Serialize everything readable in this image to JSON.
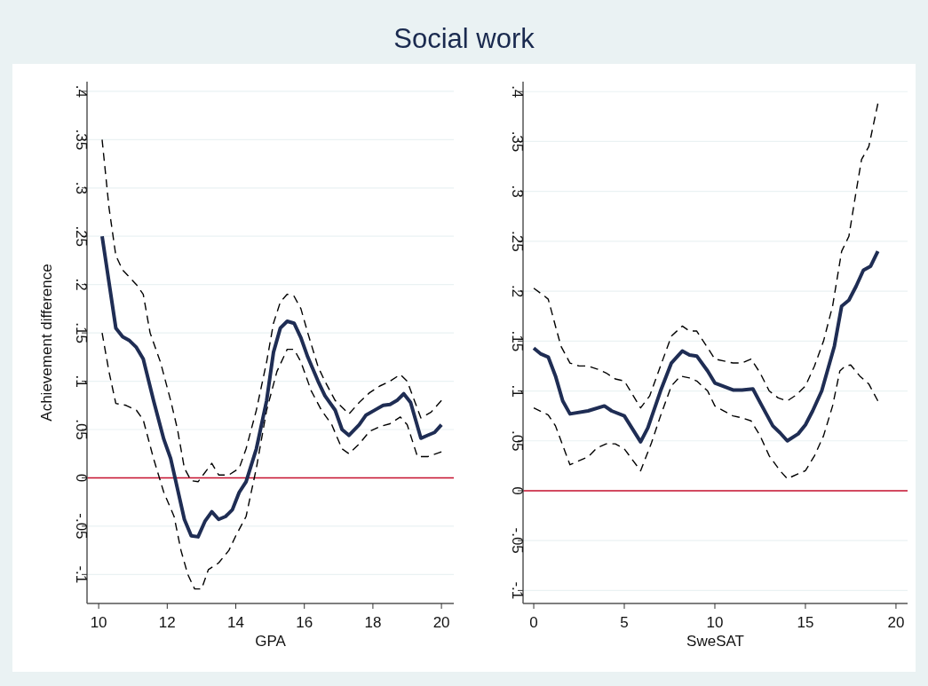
{
  "chart_data": [
    {
      "type": "line",
      "title": "Social work",
      "xlabel": "GPA",
      "ylabel": "Achievement difference",
      "xlim": [
        9.66,
        20.36
      ],
      "xticks": [
        10,
        12,
        14,
        16,
        18,
        20
      ],
      "ylim": [
        -0.13,
        0.41
      ],
      "yticks": [
        {
          "value": -0.1,
          "label": "-.1"
        },
        {
          "value": -0.05,
          "label": "-.05"
        },
        0,
        {
          "value": 0.05,
          "label": ".05"
        },
        {
          "value": 0.1,
          "label": ".1"
        },
        {
          "value": 0.15,
          "label": ".15"
        },
        {
          "value": 0.2,
          "label": ".2"
        },
        {
          "value": 0.25,
          "label": ".25"
        },
        {
          "value": 0.3,
          "label": ".3"
        },
        {
          "value": 0.35,
          "label": ".35"
        },
        {
          "value": 0.4,
          "label": ".4"
        }
      ],
      "grid": "y",
      "ref_lines": [
        {
          "axis": "y",
          "value": 0,
          "color": "#c8102e"
        }
      ],
      "series": [
        {
          "color": "#000000",
          "line_style": "dashed",
          "x": [
            10.1,
            10.3,
            10.5,
            10.7,
            11.1,
            11.3,
            11.5,
            11.8,
            12.1,
            12.3,
            12.5,
            12.7,
            12.9,
            13.3,
            13.5,
            13.8,
            14.1,
            14.3,
            14.6,
            14.9,
            15.1,
            15.3,
            15.5,
            15.7,
            15.9,
            16.1,
            16.4,
            16.6,
            16.9,
            17.3,
            17.6,
            17.9,
            18.2,
            18.5,
            18.8,
            19.0,
            19.4,
            19.7,
            20
          ],
          "values": [
            0.35,
            0.28,
            0.23,
            0.215,
            0.2,
            0.19,
            0.15,
            0.12,
            0.08,
            0.05,
            0.01,
            -0.003,
            -0.004,
            0.015,
            0.003,
            0.003,
            0.01,
            0.03,
            0.07,
            0.12,
            0.16,
            0.182,
            0.19,
            0.188,
            0.175,
            0.15,
            0.115,
            0.1,
            0.08,
            0.066,
            0.078,
            0.088,
            0.095,
            0.1,
            0.107,
            0.1,
            0.062,
            0.068,
            0.08
          ]
        },
        {
          "color": "#000000",
          "line_style": "dashed",
          "x": [
            10.1,
            10.3,
            10.5,
            10.8,
            11.1,
            11.3,
            11.6,
            11.9,
            12.2,
            12.4,
            12.6,
            12.8,
            13.0,
            13.2,
            13.5,
            13.8,
            14.0,
            14.3,
            14.6,
            14.9,
            15.2,
            15.5,
            15.7,
            15.9,
            16.2,
            16.5,
            16.8,
            17.1,
            17.3,
            17.6,
            17.9,
            18.2,
            18.5,
            18.8,
            19.0,
            19.3,
            19.6,
            20
          ],
          "values": [
            0.15,
            0.11,
            0.077,
            0.075,
            0.07,
            0.06,
            0.02,
            -0.015,
            -0.04,
            -0.075,
            -0.1,
            -0.115,
            -0.115,
            -0.095,
            -0.088,
            -0.075,
            -0.06,
            -0.04,
            0.01,
            0.07,
            0.11,
            0.133,
            0.133,
            0.12,
            0.09,
            0.07,
            0.055,
            0.03,
            0.025,
            0.035,
            0.048,
            0.053,
            0.056,
            0.063,
            0.055,
            0.022,
            0.022,
            0.027
          ]
        },
        {
          "color": "#1f2d54",
          "line_style": "solid",
          "x": [
            10.1,
            10.5,
            10.7,
            10.9,
            11.1,
            11.3,
            11.6,
            11.9,
            12.1,
            12.5,
            12.7,
            12.9,
            13.1,
            13.3,
            13.5,
            13.7,
            13.9,
            14.1,
            14.3,
            14.6,
            14.9,
            15.1,
            15.3,
            15.5,
            15.7,
            15.9,
            16.1,
            16.4,
            16.6,
            16.9,
            17.1,
            17.3,
            17.6,
            17.8,
            18.1,
            18.3,
            18.5,
            18.7,
            18.9,
            19.1,
            19.4,
            19.6,
            19.8,
            20
          ],
          "values": [
            0.25,
            0.155,
            0.146,
            0.142,
            0.135,
            0.123,
            0.08,
            0.04,
            0.02,
            -0.043,
            -0.06,
            -0.061,
            -0.045,
            -0.035,
            -0.043,
            -0.04,
            -0.033,
            -0.015,
            -0.004,
            0.03,
            0.08,
            0.13,
            0.155,
            0.162,
            0.16,
            0.145,
            0.125,
            0.1,
            0.085,
            0.07,
            0.05,
            0.044,
            0.055,
            0.065,
            0.071,
            0.075,
            0.076,
            0.08,
            0.087,
            0.078,
            0.041,
            0.044,
            0.047,
            0.055
          ]
        }
      ]
    },
    {
      "type": "line",
      "xlabel": "SweSAT",
      "xlim": [
        -0.59,
        20.64
      ],
      "xticks": [
        0,
        5,
        10,
        15,
        20
      ],
      "ylim": [
        -0.113,
        0.41
      ],
      "yticks": [
        {
          "value": -0.1,
          "label": "-.1"
        },
        {
          "value": -0.05,
          "label": "-.05"
        },
        0,
        {
          "value": 0.05,
          "label": ".05"
        },
        {
          "value": 0.1,
          "label": ".1"
        },
        {
          "value": 0.15,
          "label": ".15"
        },
        {
          "value": 0.2,
          "label": ".2"
        },
        {
          "value": 0.25,
          "label": ".25"
        },
        {
          "value": 0.3,
          "label": ".3"
        },
        {
          "value": 0.35,
          "label": ".35"
        },
        {
          "value": 0.4,
          "label": ".4"
        }
      ],
      "grid": "y",
      "ref_lines": [
        {
          "axis": "y",
          "value": 0,
          "color": "#c8102e"
        }
      ],
      "series": [
        {
          "color": "#000000",
          "line_style": "dashed",
          "x": [
            0,
            0.6,
            0.8,
            1.2,
            1.5,
            2,
            2.5,
            3,
            3.5,
            4,
            4.5,
            5,
            5.5,
            5.9,
            6.4,
            7,
            7.6,
            8.2,
            8.6,
            9,
            10,
            11,
            11.5,
            12,
            12.5,
            13,
            13.5,
            14,
            14.5,
            15,
            15.5,
            16,
            16.5,
            17,
            17.4,
            17.8,
            18.1,
            18.5,
            19
          ],
          "values": [
            0.203,
            0.195,
            0.192,
            0.165,
            0.145,
            0.128,
            0.125,
            0.125,
            0.122,
            0.118,
            0.112,
            0.11,
            0.095,
            0.083,
            0.095,
            0.125,
            0.155,
            0.165,
            0.16,
            0.16,
            0.132,
            0.128,
            0.128,
            0.132,
            0.118,
            0.1,
            0.093,
            0.09,
            0.096,
            0.105,
            0.125,
            0.15,
            0.185,
            0.24,
            0.255,
            0.3,
            0.332,
            0.345,
            0.388
          ]
        },
        {
          "color": "#000000",
          "line_style": "dashed",
          "x": [
            0,
            0.8,
            1.2,
            2,
            3,
            3.5,
            4,
            4.5,
            5,
            5.9,
            6.5,
            7,
            7.6,
            8.1,
            8.6,
            9,
            9.6,
            10,
            10.5,
            11,
            11.5,
            12,
            12.5,
            13,
            13.6,
            14,
            14.6,
            15,
            15.5,
            16,
            16.5,
            16.9,
            17.2,
            17.5,
            18,
            18.5,
            19
          ],
          "values": [
            0.083,
            0.076,
            0.065,
            0.026,
            0.034,
            0.043,
            0.047,
            0.047,
            0.042,
            0.02,
            0.048,
            0.075,
            0.105,
            0.115,
            0.113,
            0.11,
            0.1,
            0.085,
            0.08,
            0.075,
            0.073,
            0.07,
            0.055,
            0.035,
            0.02,
            0.012,
            0.017,
            0.02,
            0.035,
            0.055,
            0.085,
            0.12,
            0.125,
            0.126,
            0.115,
            0.107,
            0.09
          ]
        },
        {
          "color": "#1f2d54",
          "line_style": "solid",
          "x": [
            0,
            0.4,
            0.8,
            1.2,
            1.6,
            2,
            3,
            3.9,
            4.3,
            5,
            5.9,
            6.3,
            7,
            7.6,
            8.2,
            8.6,
            9,
            9.6,
            10,
            11,
            11.5,
            12.1,
            12.6,
            13.2,
            13.6,
            14,
            14.6,
            15.0,
            15.4,
            15.9,
            16.6,
            17,
            17.4,
            17.8,
            18.2,
            18.6,
            19
          ],
          "values": [
            0.143,
            0.137,
            0.134,
            0.115,
            0.09,
            0.077,
            0.08,
            0.085,
            0.08,
            0.075,
            0.049,
            0.063,
            0.1,
            0.128,
            0.14,
            0.136,
            0.135,
            0.12,
            0.108,
            0.101,
            0.101,
            0.102,
            0.085,
            0.065,
            0.058,
            0.05,
            0.057,
            0.066,
            0.08,
            0.1,
            0.145,
            0.185,
            0.191,
            0.205,
            0.221,
            0.225,
            0.24
          ]
        }
      ]
    }
  ]
}
